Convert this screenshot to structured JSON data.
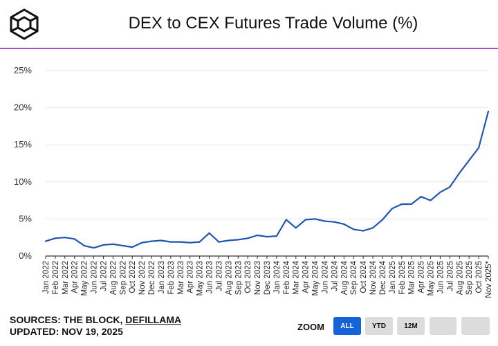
{
  "header": {
    "title": "DEX to CEX Futures Trade Volume (%)"
  },
  "footer": {
    "sources_prefix": "SOURCES: THE BLOCK, ",
    "sources_link": "DEFILLAMA",
    "updated": "UPDATED: NOV 19, 2025"
  },
  "zoom": {
    "label": "ZOOM",
    "buttons": [
      "ALL",
      "YTD",
      "12M",
      "",
      ""
    ],
    "active": "ALL"
  },
  "colors": {
    "line": "#1f56b3",
    "accent_rule": "#b24bd3",
    "active_button": "#1463d9"
  },
  "chart_data": {
    "type": "line",
    "title": "DEX to CEX Futures Trade Volume (%)",
    "xlabel": "",
    "ylabel": "",
    "ylim": [
      0,
      25
    ],
    "yticks": [
      "0%",
      "5%",
      "10%",
      "15%",
      "20%",
      "25%"
    ],
    "grid": true,
    "categories": [
      "Jan 2022",
      "Feb 2022",
      "Mar 2022",
      "Apr 2022",
      "May 2022",
      "Jun 2022",
      "Jul 2022",
      "Aug 2022",
      "Sep 2022",
      "Oct 2022",
      "Nov 2022",
      "Dec 2022",
      "Jan 2023",
      "Feb 2023",
      "Mar 2023",
      "Apr 2023",
      "May 2023",
      "Jun 2023",
      "Jul 2023",
      "Aug 2023",
      "Sep 2023",
      "Oct 2023",
      "Nov 2023",
      "Dec 2023",
      "Jan 2024",
      "Feb 2024",
      "Mar 2024",
      "Apr 2024",
      "May 2024",
      "Jun 2024",
      "Jul 2024",
      "Aug 2024",
      "Sep 2024",
      "Oct 2024",
      "Nov 2024",
      "Dec 2024",
      "Jan 2025",
      "Feb 2025",
      "Mar 2025",
      "Apr 2025",
      "May 2025",
      "Jun 2025",
      "Jul 2025",
      "Aug 2025",
      "Sep 2025",
      "Oct 2025",
      "Nov 2025*"
    ],
    "series": [
      {
        "name": "DEX to CEX Futures Trade Volume (%)",
        "values": [
          2.0,
          2.4,
          2.5,
          2.3,
          1.4,
          1.1,
          1.5,
          1.6,
          1.4,
          1.2,
          1.8,
          2.0,
          2.1,
          1.9,
          1.9,
          1.8,
          1.9,
          3.1,
          1.9,
          2.1,
          2.2,
          2.4,
          2.8,
          2.6,
          2.7,
          4.9,
          3.8,
          4.9,
          5.0,
          4.7,
          4.6,
          4.3,
          3.6,
          3.4,
          3.8,
          4.9,
          6.4,
          7.0,
          7.0,
          8.0,
          7.5,
          8.6,
          9.3,
          11.2,
          12.9,
          14.6,
          19.5
        ]
      }
    ]
  }
}
